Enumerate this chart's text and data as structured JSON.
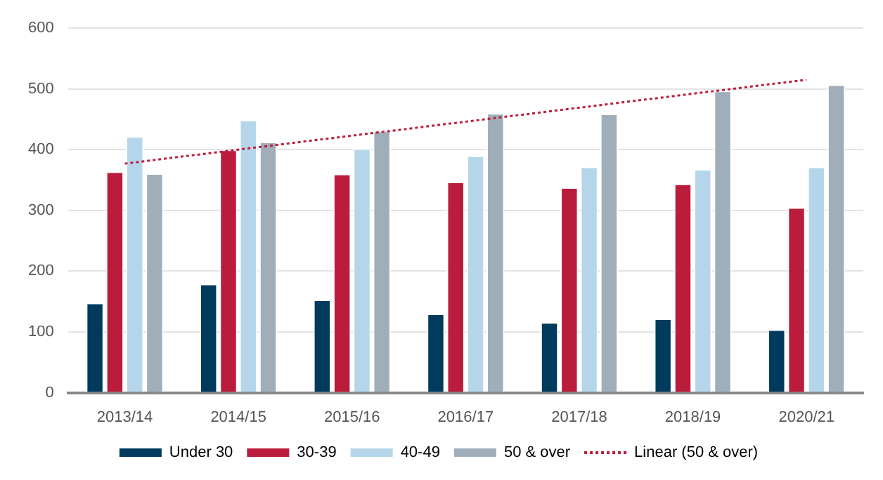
{
  "chart_data": {
    "type": "bar",
    "categories": [
      "2013/14",
      "2014/15",
      "2015/16",
      "2016/17",
      "2017/18",
      "2018/19",
      "2020/21"
    ],
    "series": [
      {
        "name": "Under 30",
        "color": "#003a5d",
        "values": [
          148,
          179,
          153,
          130,
          116,
          122,
          104
        ]
      },
      {
        "name": "30-39",
        "color": "#bb1c3c",
        "values": [
          364,
          400,
          360,
          347,
          338,
          344,
          305
        ]
      },
      {
        "name": "40-49",
        "color": "#b5d6ea",
        "values": [
          422,
          449,
          402,
          390,
          372,
          368,
          372
        ]
      },
      {
        "name": "50 & over",
        "color": "#a0aeba",
        "values": [
          361,
          413,
          431,
          460,
          459,
          497,
          507
        ]
      },
      {
        "name": "Linear (50 & over)",
        "type": "line",
        "color": "#bb1c3c",
        "line_style": "dotted",
        "marker": "none",
        "values": [
          377,
          400,
          423,
          446,
          469,
          492,
          515
        ]
      }
    ],
    "ylim": [
      0,
      600
    ],
    "yticks": [
      0,
      100,
      200,
      300,
      400,
      500,
      600
    ],
    "grid": "y",
    "legend": "bottom"
  }
}
